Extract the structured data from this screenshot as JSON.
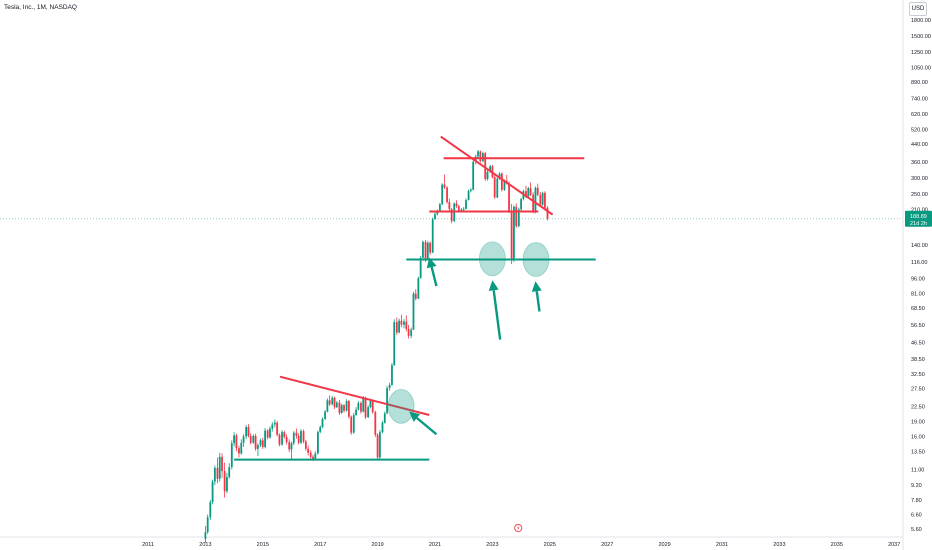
{
  "header": {
    "title": "Tesla, Inc., 1M, NASDAQ",
    "currency": "USD"
  },
  "chart_data": {
    "type": "candlestick",
    "title": "Tesla, Inc., 1M, NASDAQ",
    "y_scale": "log",
    "y_ticks": [
      "1800.00",
      "1500.00",
      "1250.00",
      "1050.00",
      "890.00",
      "740.00",
      "620.00",
      "520.00",
      "440.00",
      "360.00",
      "300.00",
      "250.00",
      "210.00",
      "140.00",
      "116.00",
      "96.00",
      "81.00",
      "68.50",
      "56.50",
      "46.50",
      "38.50",
      "32.50",
      "27.50",
      "22.50",
      "19.00",
      "16.00",
      "13.50",
      "11.00",
      "9.20",
      "7.80",
      "6.60",
      "5.60"
    ],
    "x_ticks": [
      "2011",
      "2013",
      "2015",
      "2017",
      "2019",
      "2021",
      "2023",
      "2025",
      "2027",
      "2029",
      "2031",
      "2033",
      "2035",
      "2037"
    ],
    "current_price": {
      "value": "188.89",
      "countdown": "21d 2h"
    },
    "candles": [
      [
        2013.0,
        5.0,
        5.8,
        4.8,
        5.4
      ],
      [
        2013.08,
        5.4,
        6.6,
        5.3,
        6.4
      ],
      [
        2013.17,
        6.4,
        7.8,
        6.2,
        7.6
      ],
      [
        2013.25,
        7.6,
        9.8,
        7.4,
        9.6
      ],
      [
        2013.33,
        9.6,
        11.5,
        9.2,
        11.2
      ],
      [
        2013.42,
        11.2,
        12.6,
        9.4,
        9.9
      ],
      [
        2013.5,
        9.9,
        13.3,
        9.6,
        12.7
      ],
      [
        2013.58,
        12.7,
        13.2,
        10.0,
        10.8
      ],
      [
        2013.67,
        10.8,
        11.9,
        8.0,
        8.6
      ],
      [
        2013.75,
        8.6,
        10.6,
        8.4,
        10.1
      ],
      [
        2013.83,
        10.1,
        11.8,
        9.9,
        11.3
      ],
      [
        2013.92,
        11.3,
        15.3,
        11.0,
        14.8
      ],
      [
        2014.0,
        14.8,
        16.8,
        14.3,
        16.2
      ],
      [
        2014.08,
        16.2,
        16.5,
        13.5,
        14.0
      ],
      [
        2014.17,
        14.0,
        14.4,
        12.6,
        13.2
      ],
      [
        2014.25,
        13.2,
        15.5,
        13.0,
        14.9
      ],
      [
        2014.33,
        14.9,
        16.4,
        14.2,
        16.0
      ],
      [
        2014.42,
        16.0,
        18.2,
        15.5,
        17.8
      ],
      [
        2014.5,
        17.8,
        18.4,
        15.8,
        16.1
      ],
      [
        2014.58,
        16.1,
        16.6,
        14.6,
        14.9
      ],
      [
        2014.67,
        14.9,
        16.4,
        14.7,
        16.1
      ],
      [
        2014.75,
        16.1,
        16.5,
        13.6,
        13.9
      ],
      [
        2014.83,
        13.9,
        14.8,
        12.8,
        14.5
      ],
      [
        2014.92,
        14.5,
        15.6,
        14.2,
        15.3
      ],
      [
        2015.0,
        15.3,
        15.8,
        13.9,
        14.2
      ],
      [
        2015.08,
        14.2,
        17.6,
        14.0,
        17.1
      ],
      [
        2015.17,
        17.1,
        17.4,
        15.5,
        15.8
      ],
      [
        2015.25,
        15.8,
        17.9,
        15.6,
        17.5
      ],
      [
        2015.33,
        17.5,
        18.8,
        16.9,
        18.3
      ],
      [
        2015.42,
        18.3,
        19.4,
        17.7,
        18.7
      ],
      [
        2015.5,
        18.7,
        19.1,
        16.0,
        16.3
      ],
      [
        2015.58,
        16.3,
        16.6,
        14.3,
        14.6
      ],
      [
        2015.67,
        14.6,
        17.2,
        14.4,
        16.8
      ],
      [
        2015.75,
        16.8,
        17.1,
        15.6,
        15.9
      ],
      [
        2015.83,
        15.9,
        16.4,
        14.6,
        15.0
      ],
      [
        2015.92,
        15.0,
        15.5,
        13.4,
        13.8
      ],
      [
        2016.0,
        13.8,
        15.1,
        12.3,
        14.8
      ],
      [
        2016.08,
        14.8,
        17.0,
        14.5,
        16.7
      ],
      [
        2016.17,
        16.7,
        17.5,
        15.6,
        16.1
      ],
      [
        2016.25,
        16.1,
        16.6,
        14.6,
        14.9
      ],
      [
        2016.33,
        14.9,
        17.4,
        14.7,
        17.0
      ],
      [
        2016.42,
        17.0,
        17.3,
        14.8,
        15.1
      ],
      [
        2016.5,
        15.1,
        15.4,
        13.6,
        13.9
      ],
      [
        2016.58,
        13.9,
        14.4,
        12.9,
        13.3
      ],
      [
        2016.67,
        13.3,
        13.7,
        12.4,
        12.7
      ],
      [
        2016.75,
        12.7,
        13.0,
        12.1,
        12.4
      ],
      [
        2016.83,
        12.4,
        13.5,
        12.2,
        13.2
      ],
      [
        2016.92,
        13.2,
        17.1,
        13.0,
        16.8
      ],
      [
        2017.0,
        16.8,
        18.1,
        16.6,
        17.8
      ],
      [
        2017.08,
        17.8,
        19.9,
        17.6,
        19.5
      ],
      [
        2017.17,
        19.5,
        21.6,
        19.3,
        21.2
      ],
      [
        2017.25,
        21.2,
        24.6,
        21.0,
        24.1
      ],
      [
        2017.33,
        24.1,
        25.5,
        22.6,
        23.0
      ],
      [
        2017.42,
        23.0,
        25.3,
        22.8,
        24.8
      ],
      [
        2017.5,
        24.8,
        25.1,
        21.8,
        22.3
      ],
      [
        2017.58,
        22.3,
        23.9,
        22.1,
        23.5
      ],
      [
        2017.67,
        23.5,
        24.2,
        20.4,
        20.9
      ],
      [
        2017.75,
        20.9,
        23.2,
        20.7,
        22.8
      ],
      [
        2017.83,
        22.8,
        23.1,
        21.0,
        21.4
      ],
      [
        2017.92,
        21.4,
        24.4,
        21.2,
        23.9
      ],
      [
        2018.0,
        23.9,
        24.2,
        19.6,
        20.0
      ],
      [
        2018.08,
        20.0,
        20.3,
        16.3,
        16.7
      ],
      [
        2018.17,
        16.7,
        20.9,
        16.5,
        20.4
      ],
      [
        2018.25,
        20.4,
        22.3,
        20.2,
        21.7
      ],
      [
        2018.33,
        21.7,
        23.9,
        21.5,
        23.4
      ],
      [
        2018.42,
        23.4,
        23.8,
        20.7,
        21.2
      ],
      [
        2018.5,
        21.2,
        25.3,
        21.0,
        24.7
      ],
      [
        2018.58,
        24.7,
        25.1,
        19.5,
        19.9
      ],
      [
        2018.67,
        19.9,
        22.8,
        19.7,
        22.3
      ],
      [
        2018.75,
        22.3,
        24.5,
        22.0,
        23.9
      ],
      [
        2018.83,
        23.9,
        24.2,
        20.7,
        21.1
      ],
      [
        2018.92,
        21.1,
        21.4,
        15.9,
        16.3
      ],
      [
        2019.0,
        16.3,
        16.6,
        12.2,
        12.6
      ],
      [
        2019.08,
        12.6,
        17.2,
        12.4,
        16.8
      ],
      [
        2019.17,
        16.8,
        19.1,
        16.6,
        18.7
      ],
      [
        2019.25,
        18.7,
        21.2,
        18.5,
        20.8
      ],
      [
        2019.33,
        20.8,
        28.4,
        20.6,
        27.7
      ],
      [
        2019.42,
        27.7,
        29.4,
        26.9,
        28.7
      ],
      [
        2019.5,
        28.7,
        36.8,
        28.4,
        35.9
      ],
      [
        2019.58,
        35.9,
        60.4,
        35.6,
        58.5
      ],
      [
        2019.67,
        58.5,
        61.7,
        50.6,
        52.0
      ],
      [
        2019.75,
        52.0,
        60.9,
        51.5,
        59.4
      ],
      [
        2019.83,
        59.4,
        63.6,
        55.3,
        56.8
      ],
      [
        2019.92,
        56.8,
        60.5,
        54.6,
        58.9
      ],
      [
        2020.0,
        58.9,
        63.1,
        52.6,
        54.2
      ],
      [
        2020.08,
        54.2,
        56.7,
        48.6,
        50.1
      ],
      [
        2020.17,
        50.1,
        55.0,
        48.8,
        53.7
      ],
      [
        2020.25,
        53.7,
        82.5,
        53.5,
        80.8
      ],
      [
        2020.33,
        80.8,
        85.0,
        74.8,
        76.3
      ],
      [
        2020.42,
        76.3,
        98.1,
        76.0,
        96.3
      ],
      [
        2020.5,
        96.3,
        123.8,
        95.9,
        121.2
      ],
      [
        2020.58,
        121.2,
        147.8,
        120.8,
        145.2
      ],
      [
        2020.67,
        145.2,
        148.6,
        115.9,
        118.5
      ],
      [
        2020.75,
        118.5,
        147.0,
        117.9,
        143.8
      ],
      [
        2020.83,
        143.8,
        146.2,
        125.5,
        128.6
      ],
      [
        2020.92,
        128.6,
        191.8,
        128.1,
        187.9
      ],
      [
        2021.0,
        187.9,
        202.9,
        187.1,
        198.9
      ],
      [
        2021.08,
        198.9,
        210.1,
        196.2,
        207.1
      ],
      [
        2021.17,
        207.1,
        226.2,
        204.3,
        222.6
      ],
      [
        2021.25,
        222.6,
        282.6,
        220.1,
        278.4
      ],
      [
        2021.33,
        278.4,
        311.9,
        264.7,
        269.2
      ],
      [
        2021.42,
        269.2,
        273.4,
        223.9,
        228.3
      ],
      [
        2021.5,
        228.3,
        237.5,
        206.6,
        210.7
      ],
      [
        2021.58,
        210.7,
        213.4,
        179.7,
        183.9
      ],
      [
        2021.67,
        183.9,
        227.6,
        181.9,
        224.6
      ],
      [
        2021.75,
        224.6,
        232.9,
        213.7,
        217.7
      ],
      [
        2021.83,
        217.7,
        221.2,
        202.8,
        206.6
      ],
      [
        2021.92,
        206.6,
        213.3,
        202.8,
        209.6
      ],
      [
        2022.0,
        209.6,
        215.7,
        204.6,
        211.3
      ],
      [
        2022.08,
        211.3,
        237.8,
        209.8,
        233.9
      ],
      [
        2022.17,
        233.9,
        263.0,
        232.1,
        258.9
      ],
      [
        2022.25,
        258.9,
        267.3,
        254.8,
        262.7
      ],
      [
        2022.33,
        262.7,
        365.8,
        260.5,
        360.2
      ],
      [
        2022.42,
        360.2,
        390.4,
        349.9,
        382.9
      ],
      [
        2022.5,
        382.9,
        411.9,
        373.7,
        405.4
      ],
      [
        2022.58,
        405.4,
        409.1,
        356.7,
        363.2
      ],
      [
        2022.67,
        363.2,
        403.7,
        358.2,
        397.7
      ],
      [
        2022.75,
        397.7,
        403.3,
        290.7,
        296.4
      ],
      [
        2022.83,
        296.4,
        327.8,
        291.2,
        321.8
      ],
      [
        2022.92,
        321.8,
        348.4,
        318.2,
        342.6
      ],
      [
        2023.0,
        342.6,
        348.2,
        298.8,
        303.5
      ],
      [
        2023.08,
        303.5,
        316.1,
        237.0,
        240.9
      ],
      [
        2023.17,
        240.9,
        302.9,
        238.1,
        297.9
      ],
      [
        2023.25,
        297.9,
        320.1,
        293.7,
        315.1
      ],
      [
        2023.33,
        315.1,
        319.8,
        257.6,
        262.3
      ],
      [
        2023.42,
        262.3,
        295.4,
        259.1,
        290.5
      ],
      [
        2023.5,
        290.5,
        310.7,
        278.5,
        282.6
      ],
      [
        2023.58,
        282.6,
        288.5,
        201.5,
        205.3
      ],
      [
        2023.67,
        205.3,
        223.7,
        113.1,
        117.8
      ],
      [
        2023.75,
        117.8,
        219.8,
        115.6,
        216.3
      ],
      [
        2023.83,
        216.3,
        224.6,
        170.5,
        173.8
      ],
      [
        2023.92,
        173.8,
        214.2,
        171.5,
        210.1
      ],
      [
        2024.0,
        210.1,
        240.4,
        206.9,
        236.2
      ],
      [
        2024.08,
        236.2,
        262.8,
        232.4,
        258.6
      ],
      [
        2024.17,
        258.6,
        274.6,
        238.6,
        242.4
      ],
      [
        2024.25,
        242.4,
        271.2,
        239.4,
        267.1
      ],
      [
        2024.33,
        267.1,
        284.9,
        244.6,
        248.1
      ],
      [
        2024.42,
        248.1,
        255.4,
        200.6,
        203.9
      ],
      [
        2024.5,
        203.9,
        272.3,
        200.9,
        268.2
      ],
      [
        2024.58,
        268.2,
        281.3,
        244.2,
        247.8
      ],
      [
        2024.67,
        247.8,
        255.7,
        218.6,
        221.7
      ],
      [
        2024.75,
        221.7,
        257.1,
        218.3,
        253.5
      ],
      [
        2024.83,
        253.5,
        258.1,
        211.0,
        214.1
      ],
      [
        2024.92,
        214.1,
        218.3,
        185.4,
        188.89
      ]
    ],
    "drawings": {
      "red_trendlines": [
        [
          [
            2015.6,
            31.5
          ],
          [
            2020.8,
            20.4
          ]
        ],
        [
          [
            2021.2,
            480
          ],
          [
            2025.1,
            198
          ]
        ],
        [
          [
            2021.3,
            375
          ],
          [
            2026.2,
            375
          ]
        ],
        [
          [
            2020.8,
            205
          ],
          [
            2024.6,
            205
          ]
        ]
      ],
      "green_lines": [
        [
          [
            2014.0,
            12.3
          ],
          [
            2020.8,
            12.3
          ]
        ],
        [
          [
            2020.0,
            119
          ],
          [
            2026.6,
            119
          ]
        ]
      ],
      "circles": [
        [
          2019.82,
          22.5
        ],
        [
          2023.0,
          120
        ],
        [
          2024.52,
          119
        ]
      ],
      "arrows": [
        [
          [
            2021.05,
            88
          ],
          [
            2020.8,
            122
          ]
        ],
        [
          [
            2021.05,
            16.4
          ],
          [
            2020.1,
            21.2
          ]
        ],
        [
          [
            2023.27,
            48
          ],
          [
            2023.0,
            94
          ]
        ],
        [
          [
            2024.64,
            66
          ],
          [
            2024.5,
            93
          ]
        ]
      ]
    }
  }
}
